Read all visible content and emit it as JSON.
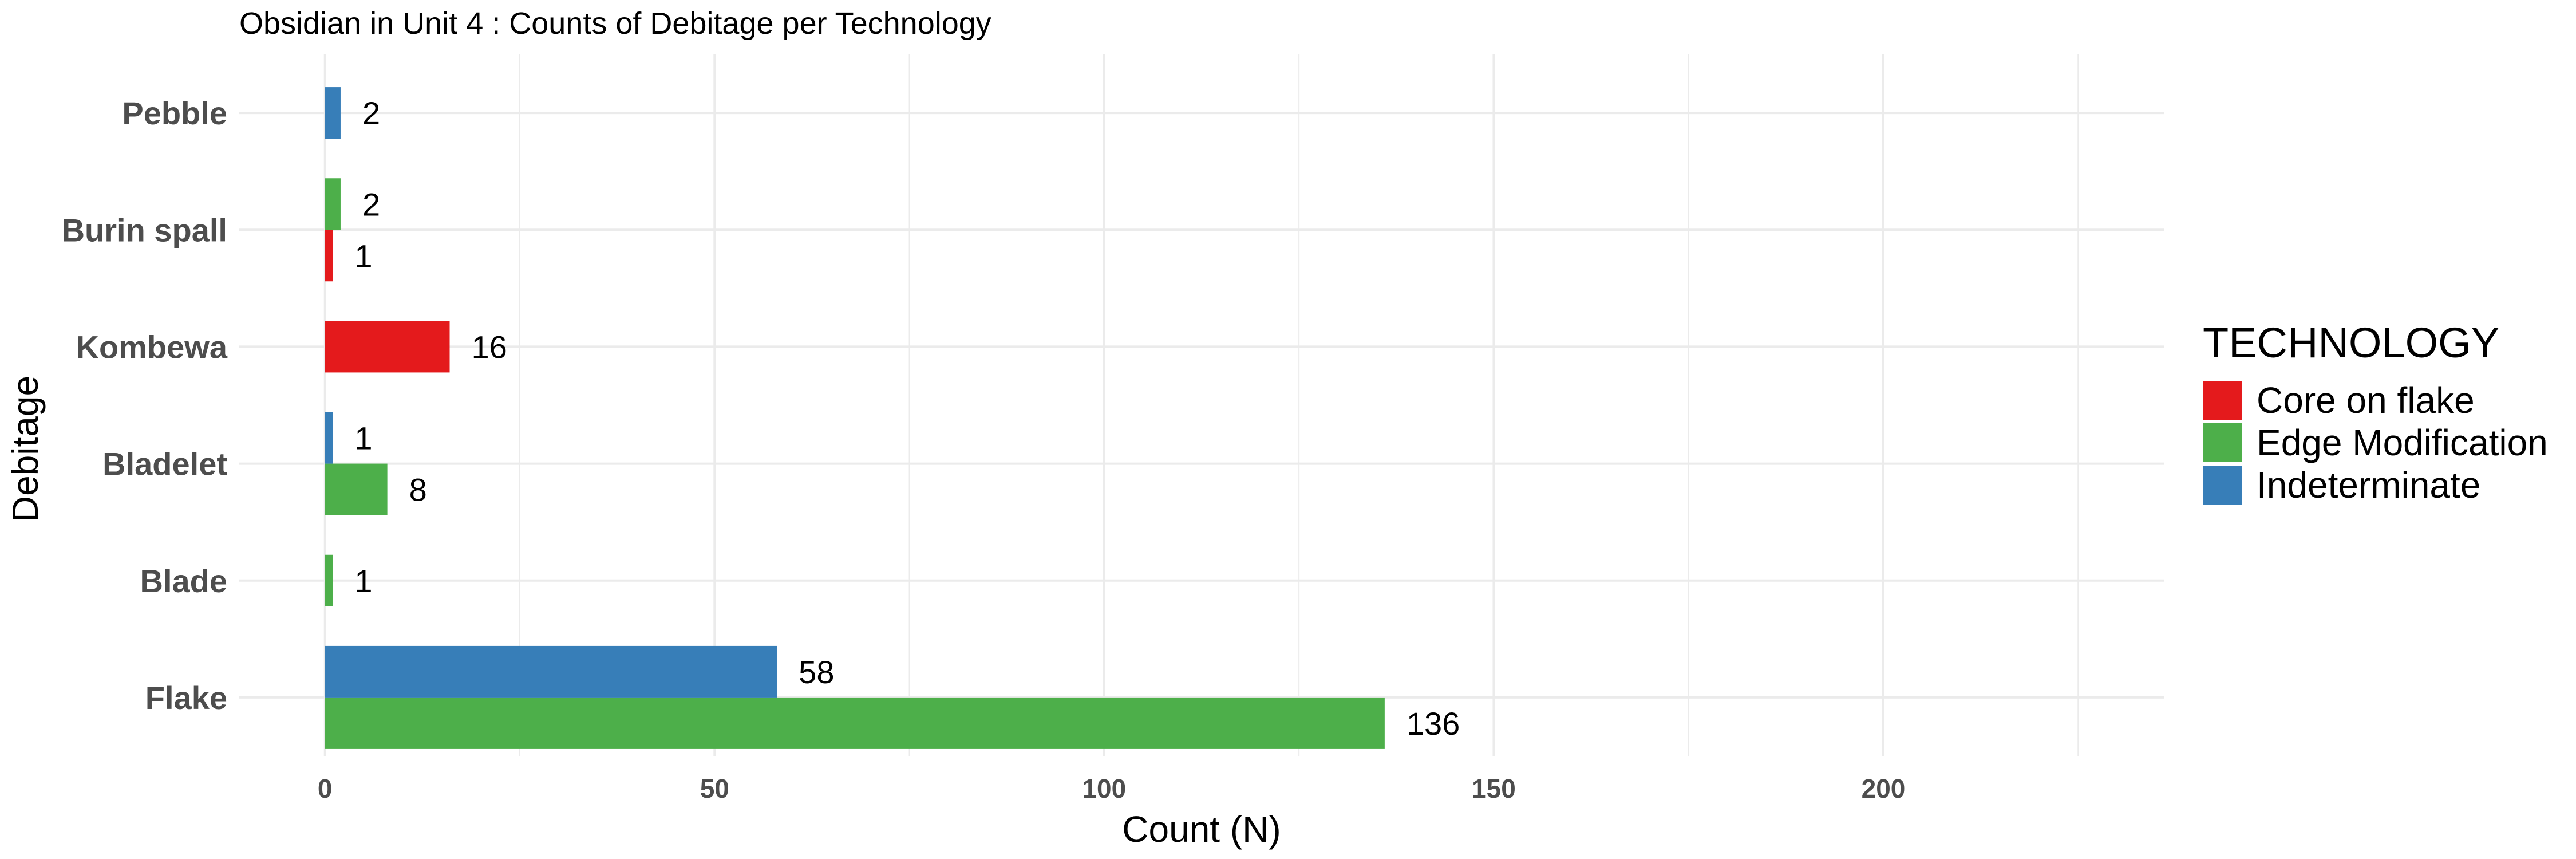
{
  "chart_data": {
    "type": "bar",
    "orientation": "horizontal",
    "title": "Obsidian in Unit 4 : Counts of Debitage per Technology",
    "xlabel": "Count (N)",
    "ylabel": "Debitage",
    "xlim": [
      -11,
      236
    ],
    "xticks": [
      0,
      50,
      100,
      150,
      200
    ],
    "categories": [
      "Flake",
      "Blade",
      "Bladelet",
      "Kombewa",
      "Burin spall",
      "Pebble"
    ],
    "legend_title": "TECHNOLOGY",
    "legend_position": "right",
    "grid": true,
    "series": [
      {
        "name": "Core on flake",
        "color": "#E41A1C",
        "values": [
          null,
          null,
          null,
          16,
          1,
          null
        ]
      },
      {
        "name": "Edge Modification",
        "color": "#4DAF4A",
        "values": [
          136,
          1,
          8,
          null,
          2,
          null
        ]
      },
      {
        "name": "Indeterminate",
        "color": "#377EB8",
        "values": [
          58,
          null,
          1,
          null,
          null,
          2
        ]
      }
    ]
  }
}
